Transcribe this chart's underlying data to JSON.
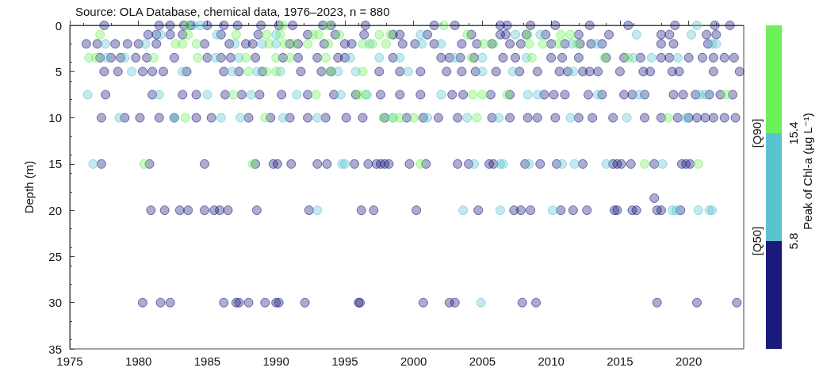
{
  "chart_data": {
    "type": "scatter",
    "title": "Source: OLA Database, chemical data, 1976–2023, n = 880",
    "ylabel": "Depth (m)",
    "clabel": "Peak of Chl-a (µg L⁻¹)",
    "annotations": [
      "[Q50]",
      "5.8",
      "[Q90]",
      "15.4"
    ],
    "xlim": [
      1975,
      2024
    ],
    "xticks": [
      1975,
      1980,
      1985,
      1990,
      1995,
      2000,
      2005,
      2010,
      2015,
      2020
    ],
    "ylim": [
      35,
      0
    ],
    "yticks": [
      0,
      5,
      10,
      15,
      20,
      25,
      30,
      35
    ],
    "marker": "circle",
    "grid": false,
    "series": [
      {
        "color": "#1a1a7e",
        "x": [
          1977.5,
          1981.5,
          1982.3,
          1983.3,
          1983.8,
          1985,
          1986.2,
          1987.2,
          1988.9,
          1990.2,
          1991.2,
          1993.4,
          1994,
          1996.5,
          2001.5,
          2003,
          2006.3,
          2006.8,
          2008.5,
          2010.3,
          2012.8,
          2015.6,
          2019,
          2021.9,
          2023,
          1980.7,
          1981.3,
          1982.3,
          1983.2,
          1986,
          1988.7,
          1992.3,
          1994.3,
          1996.4,
          1998.5,
          1999,
          2001,
          2004.2,
          2006.3,
          2006.7,
          2008.2,
          2009.6,
          2012,
          2014.2,
          2018,
          2018.6,
          2021.3,
          2022,
          1976.2,
          1977,
          1978.3,
          1979.2,
          1980,
          1981.3,
          1984.8,
          1986.6,
          1987.8,
          1988.3,
          1991,
          1991.6,
          1993.5,
          1995,
          1995.5,
          1999.2,
          2000.1,
          2001.5,
          2003.5,
          2004.6,
          2005.7,
          2007,
          2007.8,
          2010,
          2011,
          2012.1,
          2012.9,
          2013.7,
          2018,
          2018.9,
          2021.4,
          1977.2,
          1978,
          1978.7,
          1979.8,
          1980.6,
          1982.6,
          1985,
          1986,
          1986.7,
          1988.5,
          1990.5,
          1991.6,
          1993,
          1994.5,
          1995,
          1998.5,
          2002,
          2002.6,
          2003.4,
          2004.4,
          2006.5,
          2007.4,
          2010,
          2010.8,
          2012,
          2014,
          2015.3,
          2016.5,
          2018,
          2018.6,
          2020,
          2021,
          2021.8,
          2022.6,
          2023.3,
          1977.5,
          1978.5,
          1980.3,
          1981,
          1981.8,
          1983.5,
          1986.2,
          1987.3,
          1989,
          1991.8,
          1993.3,
          1994,
          1997.5,
          1999,
          2000.5,
          2002.4,
          2003.5,
          2004.5,
          2006,
          2007.7,
          2009,
          2010.6,
          2011.2,
          2012.3,
          2012.8,
          2013.4,
          2015,
          2016.7,
          2017.2,
          2018.8,
          2019.3,
          2021.8,
          2023.7,
          1977.6,
          1981,
          1983.2,
          1984.2,
          1986.3,
          1987.5,
          1988.8,
          1990.4,
          1992.3,
          1994.2,
          1995.8,
          1997.6,
          1999,
          2000.5,
          2002.8,
          2003.6,
          2005.6,
          2007,
          2009.5,
          2010.2,
          2011,
          2012.7,
          2013.7,
          2015.3,
          2015.9,
          2016.8,
          2018.9,
          2019.6,
          2020.5,
          2021.5,
          2022.3,
          2023.2,
          1977.3,
          1979,
          1980.1,
          1981.5,
          1982.6,
          1984.2,
          1985.3,
          1988,
          1989.6,
          1991,
          1992.3,
          1993.6,
          1995.1,
          1996.3,
          1997.9,
          1999.5,
          2000.7,
          2001.8,
          2003.2,
          2005.7,
          2007,
          2008.3,
          2009,
          2010.3,
          2012,
          2013,
          2014.5,
          2016.8,
          2018,
          2019.2,
          2020,
          2020.6,
          2021.2,
          2021.8,
          2022.6,
          2023.4,
          1977.3,
          1980.8,
          1984.8,
          1988.5,
          1989.8,
          1990.1,
          1991.1,
          1993,
          1993.7,
          1995.7,
          1996.7,
          1997.3,
          1997.6,
          1997.9,
          1998.2,
          1999.7,
          2000.9,
          2003.2,
          2004,
          2005.5,
          2005.8,
          2008.1,
          2009.2,
          2010.4,
          2012.3,
          2014.5,
          2014.8,
          2015.1,
          2015.8,
          2017.5,
          2019.5,
          2019.8,
          2020.1,
          2017.5,
          1980.9,
          1981.9,
          1983,
          1983.6,
          1984.8,
          1985.5,
          1985.9,
          1986.5,
          1988.6,
          1992.4,
          1996.2,
          1997.1,
          2000.2,
          2004.7,
          2007.3,
          2007.8,
          2008.5,
          2010.7,
          2011.6,
          2012.6,
          2014.6,
          2014.8,
          2015.9,
          2016.2,
          2017.7,
          2018,
          2019.4,
          1980.3,
          1981.6,
          1982.3,
          1986.2,
          1987.1,
          1987.3,
          1988,
          1989.2,
          1990,
          1990.2,
          1992.1,
          1996,
          1996.1,
          2000.7,
          2002.6,
          2003,
          2007.9,
          2008.9,
          2017.7,
          2020.6,
          2023.5
        ],
        "values": [
          0,
          0,
          0,
          0,
          0,
          0,
          0,
          0,
          0,
          0,
          0,
          0,
          0,
          0,
          0,
          0,
          0,
          0,
          0,
          0,
          0,
          0,
          0,
          0,
          0,
          1,
          1,
          1,
          1,
          1,
          1,
          1,
          1,
          1,
          1,
          1,
          1,
          1,
          1,
          1,
          1,
          1,
          1,
          1,
          1,
          1,
          1,
          1,
          2,
          2,
          2,
          2,
          2,
          2,
          2,
          2,
          2,
          2,
          2,
          2,
          2,
          2,
          2,
          2,
          2,
          2,
          2,
          2,
          2,
          2,
          2,
          2,
          2,
          2,
          2,
          2,
          2,
          2,
          2,
          3.5,
          3.5,
          3.5,
          3.5,
          3.5,
          3.5,
          3.5,
          3.5,
          3.5,
          3.5,
          3.5,
          3.5,
          3.5,
          3.5,
          3.5,
          3.5,
          3.5,
          3.5,
          3.5,
          3.5,
          3.5,
          3.5,
          3.5,
          3.5,
          3.5,
          3.5,
          3.5,
          3.5,
          3.5,
          3.5,
          3.5,
          3.5,
          3.5,
          3.5,
          3.5,
          5,
          5,
          5,
          5,
          5,
          5,
          5,
          5,
          5,
          5,
          5,
          5,
          5,
          5,
          5,
          5,
          5,
          5,
          5,
          5,
          5,
          5,
          5,
          5,
          5,
          5,
          5,
          5,
          5,
          5,
          5,
          5,
          5,
          7.5,
          7.5,
          7.5,
          7.5,
          7.5,
          7.5,
          7.5,
          7.5,
          7.5,
          7.5,
          7.5,
          7.5,
          7.5,
          7.5,
          7.5,
          7.5,
          7.5,
          7.5,
          7.5,
          7.5,
          7.5,
          7.5,
          7.5,
          7.5,
          7.5,
          7.5,
          7.5,
          7.5,
          7.5,
          7.5,
          7.5,
          7.5,
          10,
          10,
          10,
          10,
          10,
          10,
          10,
          10,
          10,
          10,
          10,
          10,
          10,
          10,
          10,
          10,
          10,
          10,
          10,
          10,
          10,
          10,
          10,
          10,
          10,
          10,
          10,
          10,
          10,
          10,
          10,
          10,
          10,
          10,
          10,
          10,
          15,
          15,
          15,
          15,
          15,
          15,
          15,
          15,
          15,
          15,
          15,
          15,
          15,
          15,
          15,
          15,
          15,
          15,
          15,
          15,
          15,
          15,
          15,
          15,
          15,
          15,
          15,
          15,
          15,
          15,
          15,
          15,
          15,
          18.7,
          20,
          20,
          20,
          20,
          20,
          20,
          20,
          20,
          20,
          20,
          20,
          20,
          20,
          20,
          20,
          20,
          20,
          20,
          20,
          20,
          20,
          20,
          20,
          20,
          20,
          20,
          20,
          30,
          30,
          30,
          30,
          30,
          30,
          30,
          30,
          30,
          30,
          30,
          30,
          30,
          30,
          30,
          30,
          30,
          30,
          30,
          30,
          30
        ]
      },
      {
        "color": "#5bc3d0",
        "x": [
          1984,
          1984.5,
          2020.6,
          1981.6,
          1985.7,
          1990,
          2000.5,
          2007.4,
          2009.2,
          2016.2,
          2020.2,
          1977.6,
          1980.5,
          1987,
          1989,
          1990,
          1996.8,
          2000.6,
          2002,
          2011.5,
          2013.3,
          2021.7,
          2022,
          1977.7,
          1979,
          1985.6,
          1987.3,
          1995.4,
          1997.5,
          1999,
          2003,
          2005,
          2008.2,
          2016,
          2017.3,
          2019.2,
          1979.5,
          1983.2,
          1986.8,
          1988.6,
          1990.3,
          1994.5,
          1995.8,
          1999.6,
          2005,
          2007.2,
          2011.6,
          1976.3,
          1981.5,
          1985,
          1988.2,
          1991.5,
          1994.7,
          1996.6,
          2002,
          2008.3,
          2009,
          2013.4,
          2016.4,
          2020.8,
          2021.2,
          1978.6,
          1982.6,
          1986,
          1987.4,
          1990.5,
          1993,
          1998.5,
          2001,
          2003.9,
          2006.2,
          2011.4,
          2015.5,
          2019.8,
          1976.7,
          1994.8,
          1995,
          2004.4,
          2006.3,
          2006.5,
          2008.4,
          2010.8,
          2011.7,
          2014,
          2018.1,
          1993,
          2003.6,
          2006.3,
          2010.1,
          2018.8,
          2019.1,
          2020.7,
          2021.5,
          2021.7,
          2004.9
        ],
        "values": [
          0,
          0,
          0,
          1,
          1,
          1,
          1,
          1,
          1,
          1,
          1,
          2,
          2,
          2,
          2,
          2,
          2,
          2,
          2,
          2,
          2,
          2,
          2,
          3.5,
          3.5,
          3.5,
          3.5,
          3.5,
          3.5,
          3.5,
          3.5,
          3.5,
          3.5,
          3.5,
          3.5,
          3.5,
          5,
          5,
          5,
          5,
          5,
          5,
          5,
          5,
          5,
          5,
          5,
          7.5,
          7.5,
          7.5,
          7.5,
          7.5,
          7.5,
          7.5,
          7.5,
          7.5,
          7.5,
          7.5,
          7.5,
          7.5,
          7.5,
          10,
          10,
          10,
          10,
          10,
          10,
          10,
          10,
          10,
          10,
          10,
          10,
          10,
          15,
          15,
          15,
          15,
          15,
          15,
          15,
          15,
          15,
          15,
          15,
          20,
          20,
          20,
          20,
          20,
          20,
          20,
          20,
          20,
          30
        ]
      },
      {
        "color": "#6ef05a",
        "x": [
          1983.5,
          1990.5,
          1993.8,
          2002.2,
          1977.2,
          1983.6,
          1987.1,
          1989.3,
          1990.3,
          1992.7,
          1993.1,
          1994.6,
          1997.5,
          1998.3,
          2003.9,
          2008.3,
          2010.7,
          2011.4,
          1982.7,
          1983.2,
          1984.2,
          1989.5,
          1990.6,
          1991.3,
          1992.3,
          1993.8,
          1996.3,
          1997,
          1998,
          2005.1,
          2005.8,
          2008.4,
          2009.4,
          2010.5,
          2011.9,
          1976.4,
          1976.9,
          1981.1,
          1984.3,
          1987.8,
          1990,
          1991,
          1993.6,
          2004.2,
          2008.6,
          2013.9,
          2015.6,
          1988,
          1989.3,
          1990,
          1993.9,
          1996.3,
          1986.9,
          1992.9,
          1996,
          1996.5,
          2004.3,
          2005,
          2006.8,
          2022.7,
          1983.4,
          1989.2,
          1997.8,
          1998.5,
          1999,
          2000,
          2004.6,
          2018.5,
          1980.4,
          1988.3,
          2000.5,
          2016.8,
          2020.7
        ],
        "values": [
          0,
          0,
          0,
          0,
          1,
          1,
          1,
          1,
          1,
          1,
          1,
          1,
          1,
          1,
          1,
          1,
          1,
          1,
          2,
          2,
          2,
          2,
          2,
          2,
          2,
          2,
          2,
          2,
          2,
          2,
          2,
          2,
          2,
          2,
          2,
          3.5,
          3.5,
          3.5,
          3.5,
          3.5,
          3.5,
          3.5,
          3.5,
          3.5,
          3.5,
          3.5,
          3.5,
          5,
          5,
          5,
          5,
          5,
          7.5,
          7.5,
          7.5,
          7.5,
          7.5,
          7.5,
          7.5,
          7.5,
          10,
          10,
          10,
          10,
          10,
          10,
          10,
          10,
          15,
          15,
          15,
          15,
          15
        ]
      }
    ]
  }
}
